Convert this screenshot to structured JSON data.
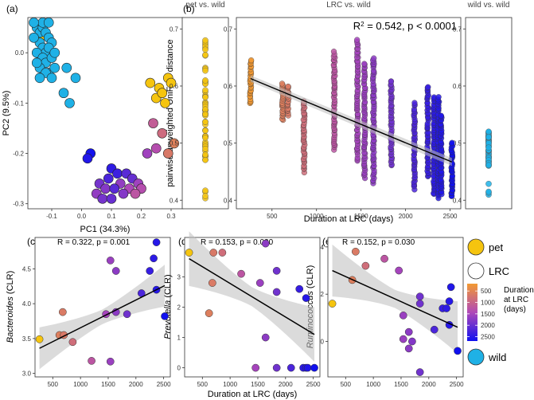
{
  "colors": {
    "pet": "#f5c40f",
    "wild": "#1fb1e6",
    "lrc_low": "#f39a32",
    "lrc_mid": "#b048b8",
    "lrc_high": "#1010ef",
    "fit": "#000000",
    "ci": "#bdbdbd"
  },
  "chart_data": [
    {
      "panel": "(a)",
      "type": "scatter",
      "xlabel": "PC1 (34.3%)",
      "ylabel": "PC2 (9.5%)",
      "xticks": [
        "-0.1",
        "0.0",
        "0.1",
        "0.2",
        "0.3"
      ],
      "yticks": [
        "0.0",
        "-0.1",
        "-0.2",
        "-0.3"
      ],
      "xlim": [
        -0.18,
        0.34
      ],
      "ylim": [
        -0.31,
        0.07
      ],
      "groups": [
        {
          "name": "pet",
          "points": [
            [
              0.23,
              -0.06
            ],
            [
              0.26,
              -0.07
            ],
            [
              0.29,
              -0.05
            ],
            [
              0.25,
              -0.09
            ],
            [
              0.28,
              -0.1
            ],
            [
              0.3,
              -0.06
            ],
            [
              0.27,
              -0.08
            ],
            [
              -0.14,
              0.03
            ]
          ]
        },
        {
          "name": "wild",
          "points": [
            [
              -0.15,
              0.05
            ],
            [
              -0.14,
              0.04
            ],
            [
              -0.13,
              0.05
            ],
            [
              -0.12,
              0.04
            ],
            [
              -0.11,
              0.03
            ],
            [
              -0.1,
              0.02
            ],
            [
              -0.14,
              0.02
            ],
            [
              -0.13,
              0.01
            ],
            [
              -0.12,
              0.0
            ],
            [
              -0.11,
              0.01
            ],
            [
              -0.15,
              0.0
            ],
            [
              -0.16,
              0.03
            ],
            [
              -0.13,
              -0.01
            ],
            [
              -0.12,
              -0.02
            ],
            [
              -0.1,
              -0.01
            ],
            [
              -0.14,
              -0.03
            ],
            [
              -0.11,
              -0.04
            ],
            [
              -0.09,
              0.0
            ],
            [
              -0.13,
              0.06
            ],
            [
              -0.11,
              0.06
            ],
            [
              -0.12,
              -0.04
            ],
            [
              -0.1,
              -0.05
            ],
            [
              -0.05,
              -0.03
            ],
            [
              -0.02,
              -0.05
            ],
            [
              -0.06,
              -0.08
            ],
            [
              -0.04,
              -0.1
            ],
            [
              -0.14,
              -0.05
            ],
            [
              -0.15,
              -0.02
            ],
            [
              -0.09,
              -0.03
            ],
            [
              -0.16,
              0.06
            ]
          ]
        },
        {
          "name": "LRC",
          "gradient": true,
          "points": [
            [
              0.31,
              -0.18,
              600
            ],
            [
              0.27,
              -0.16,
              900
            ],
            [
              0.24,
              -0.14,
              1100
            ],
            [
              0.29,
              -0.2,
              700
            ],
            [
              0.25,
              -0.19,
              1300
            ],
            [
              0.22,
              -0.2,
              1500
            ],
            [
              0.03,
              -0.2,
              2500
            ],
            [
              0.02,
              -0.21,
              2400
            ],
            [
              0.1,
              -0.23,
              2300
            ],
            [
              0.12,
              -0.24,
              2200
            ],
            [
              0.15,
              -0.24,
              2000
            ],
            [
              0.17,
              -0.25,
              1900
            ],
            [
              0.09,
              -0.25,
              2100
            ],
            [
              0.06,
              -0.26,
              1800
            ],
            [
              0.08,
              -0.27,
              1700
            ],
            [
              0.13,
              -0.26,
              1600
            ],
            [
              0.16,
              -0.27,
              1400
            ],
            [
              0.19,
              -0.26,
              1500
            ],
            [
              0.2,
              -0.27,
              1300
            ],
            [
              0.18,
              -0.28,
              1200
            ],
            [
              0.05,
              -0.28,
              1600
            ],
            [
              0.07,
              -0.29,
              1800
            ],
            [
              0.11,
              -0.27,
              2000
            ],
            [
              0.14,
              -0.28,
              1700
            ],
            [
              0.1,
              -0.29,
              1900
            ]
          ]
        }
      ]
    },
    {
      "panel": "(b)",
      "type": "scatter",
      "title": "LRC vs. wild",
      "annotation": "R² = 0.542, p < 0.0001",
      "annotation_prefix": "R",
      "annotation_sup": "2",
      "annotation_suffix": " = 0.542, p < 0.0001",
      "xlabel": "Duration at LRC (days)",
      "ylabel": "pairwise unweighted UniFrac distance",
      "xticks": [
        500,
        1000,
        1500,
        2000,
        2500
      ],
      "yticks": [
        "0.4",
        "0.5",
        "0.6",
        "0.7"
      ],
      "xlim": [
        100,
        2620
      ],
      "ylim": [
        0.385,
        0.72
      ],
      "subpanels": [
        {
          "title": "pet vs. wild",
          "group": "pet",
          "ymin": 0.4,
          "ymax": 0.68
        },
        {
          "title": "wild vs. wild",
          "group": "wild",
          "ymin": 0.4,
          "ymax": 0.52
        }
      ],
      "columns": [
        {
          "x": 260,
          "ymin": 0.57,
          "ymax": 0.645
        },
        {
          "x": 620,
          "ymin": 0.54,
          "ymax": 0.605
        },
        {
          "x": 680,
          "ymin": 0.55,
          "ymax": 0.6
        },
        {
          "x": 860,
          "ymin": 0.45,
          "ymax": 0.575
        },
        {
          "x": 1200,
          "ymin": 0.49,
          "ymax": 0.66
        },
        {
          "x": 1460,
          "ymin": 0.47,
          "ymax": 0.68
        },
        {
          "x": 1540,
          "ymin": 0.44,
          "ymax": 0.64
        },
        {
          "x": 1640,
          "ymin": 0.43,
          "ymax": 0.65
        },
        {
          "x": 1840,
          "ymin": 0.46,
          "ymax": 0.61
        },
        {
          "x": 2100,
          "ymin": 0.42,
          "ymax": 0.57
        },
        {
          "x": 2250,
          "ymin": 0.44,
          "ymax": 0.6
        },
        {
          "x": 2320,
          "ymin": 0.41,
          "ymax": 0.58
        },
        {
          "x": 2370,
          "ymin": 0.405,
          "ymax": 0.58
        },
        {
          "x": 2400,
          "ymin": 0.41,
          "ymax": 0.55
        },
        {
          "x": 2520,
          "ymin": 0.405,
          "ymax": 0.5
        }
      ],
      "fit": {
        "x": [
          260,
          2520
        ],
        "y": [
          0.613,
          0.467
        ]
      }
    },
    {
      "panel": "(c)",
      "type": "scatter",
      "annotation": "R  = 0.322, p = 0.001",
      "ylabel": "Bacteroides",
      "ylabel_suffix": " (CLR)",
      "xticks": [
        500,
        1000,
        1500,
        2000,
        2500
      ],
      "yticks": [
        "3.0",
        "3.5",
        "4.0",
        "4.5"
      ],
      "xlim": [
        180,
        2620
      ],
      "ylim": [
        2.95,
        4.95
      ],
      "pet": [
        [
          260,
          3.49
        ]
      ],
      "points": [
        [
          620,
          3.55
        ],
        [
          680,
          3.88
        ],
        [
          700,
          3.55
        ],
        [
          860,
          3.45
        ],
        [
          1200,
          3.18
        ],
        [
          1460,
          3.85
        ],
        [
          1540,
          3.17
        ],
        [
          1540,
          4.62
        ],
        [
          1640,
          3.88
        ],
        [
          1640,
          4.47
        ],
        [
          1840,
          3.85
        ],
        [
          2100,
          4.15
        ],
        [
          2250,
          4.47
        ],
        [
          2320,
          4.65
        ],
        [
          2370,
          4.88
        ],
        [
          2370,
          4.2
        ],
        [
          2520,
          3.82
        ]
      ],
      "fit": {
        "x": [
          260,
          2520
        ],
        "y": [
          3.36,
          4.26
        ]
      },
      "ci_spread": 0.3
    },
    {
      "panel": "(d)",
      "type": "scatter",
      "annotation": "R  = 0.153, p = 0.030",
      "ylabel": "Prevotella",
      "ylabel_suffix": " (CLR)",
      "xlabel": "Duration at LRC (days)",
      "xticks": [
        500,
        1000,
        1500,
        2000,
        2500
      ],
      "yticks": [
        "0",
        "1",
        "2",
        "3"
      ],
      "xlim": [
        180,
        2620
      ],
      "ylim": [
        -0.3,
        4.3
      ],
      "pet": [
        [
          260,
          3.8
        ]
      ],
      "points": [
        [
          620,
          1.8
        ],
        [
          680,
          2.8
        ],
        [
          700,
          3.8
        ],
        [
          860,
          3.8
        ],
        [
          1200,
          3.1
        ],
        [
          1460,
          0.0
        ],
        [
          1540,
          2.8
        ],
        [
          1640,
          1.0
        ],
        [
          1640,
          4.1
        ],
        [
          1840,
          0.0
        ],
        [
          1840,
          2.5
        ],
        [
          1840,
          3.2
        ],
        [
          2100,
          0.0
        ],
        [
          2250,
          2.6
        ],
        [
          2320,
          0.0
        ],
        [
          2370,
          2.3
        ],
        [
          2370,
          0.0
        ],
        [
          2400,
          0.0
        ],
        [
          2520,
          0.0
        ]
      ],
      "fit": {
        "x": [
          260,
          2520
        ],
        "y": [
          3.6,
          1.1
        ]
      },
      "ci_spread": 0.9
    },
    {
      "panel": "(e)",
      "type": "scatter",
      "annotation": "R  = 0.152, p = 0.030",
      "ylabel": "Ruminococcus",
      "ylabel_suffix": " (CLR)",
      "xticks": [
        500,
        1000,
        1500,
        2000,
        2500
      ],
      "yticks": [
        "0",
        "2",
        "4"
      ],
      "xlim": [
        180,
        2620
      ],
      "ylim": [
        -1.5,
        4.4
      ],
      "pet": [
        [
          260,
          1.6
        ]
      ],
      "points": [
        [
          620,
          2.6
        ],
        [
          680,
          3.8
        ],
        [
          860,
          3.2
        ],
        [
          1200,
          3.5
        ],
        [
          1460,
          3.0
        ],
        [
          1540,
          0.1
        ],
        [
          1540,
          1.1
        ],
        [
          1640,
          -0.3
        ],
        [
          1640,
          0.4
        ],
        [
          1700,
          0.0
        ],
        [
          1840,
          1.6
        ],
        [
          1840,
          -1.3
        ],
        [
          1840,
          1.9
        ],
        [
          2100,
          0.5
        ],
        [
          2250,
          1.4
        ],
        [
          2320,
          1.4
        ],
        [
          2370,
          0.7
        ],
        [
          2370,
          1.7
        ],
        [
          2400,
          2.3
        ],
        [
          2520,
          -0.4
        ]
      ],
      "fit": {
        "x": [
          260,
          2520
        ],
        "y": [
          3.0,
          0.6
        ]
      },
      "ci_spread": 1.1
    }
  ],
  "panels": {
    "a": {
      "label": "(a)"
    },
    "b": {
      "label": "(b)"
    },
    "c": {
      "label": "(c)"
    },
    "d": {
      "label": "(d)"
    },
    "e": {
      "label": "(e)"
    }
  },
  "legend": {
    "pet": "pet",
    "lrc": "LRC",
    "wild": "wild",
    "gradient_title": "Duration at LRC (days)",
    "gradient_lines": [
      "Duration",
      "at LRC",
      "(days)"
    ],
    "gradient_ticks": [
      500,
      1000,
      1500,
      2000,
      2500
    ]
  }
}
